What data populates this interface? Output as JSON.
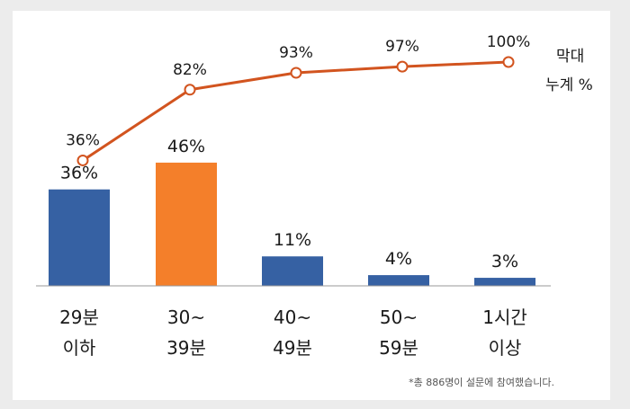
{
  "chart_data": {
    "type": "bar",
    "categories": [
      {
        "line1": "29분",
        "line2": "이하"
      },
      {
        "line1": "30~",
        "line2": "39분"
      },
      {
        "line1": "40~",
        "line2": "49분"
      },
      {
        "line1": "50~",
        "line2": "59분"
      },
      {
        "line1": "1시간",
        "line2": "이상"
      }
    ],
    "values": [
      36,
      46,
      11,
      4,
      3
    ],
    "value_labels": [
      "36%",
      "46%",
      "11%",
      "4%",
      "3%"
    ],
    "cumulative": [
      36,
      82,
      93,
      97,
      100
    ],
    "cumulative_labels": [
      "36%",
      "82%",
      "93%",
      "97%",
      "100%"
    ],
    "line_legend": {
      "line1": "막대",
      "line2": "누계 %"
    },
    "highlight_index": 1,
    "colors": {
      "bar": "#3661a3",
      "highlight": "#f47f2a",
      "line": "#d2541f",
      "marker_fill": "#ffffff",
      "axis": "#999999",
      "text": "#1a1a1a"
    }
  },
  "footnote": "*총 886명이 설문에 참여했습니다."
}
